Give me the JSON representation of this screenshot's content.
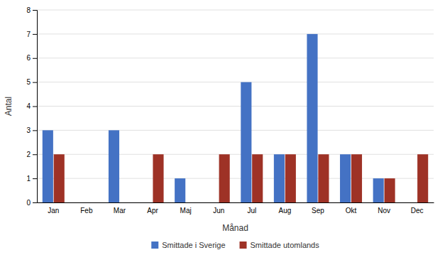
{
  "chart_data": {
    "type": "bar",
    "categories": [
      "Jan",
      "Feb",
      "Mar",
      "Apr",
      "Maj",
      "Jun",
      "Jul",
      "Aug",
      "Sep",
      "Okt",
      "Nov",
      "Dec"
    ],
    "series": [
      {
        "name": "Smittade i Sverige",
        "color": "#4472C4",
        "values": [
          3,
          0,
          3,
          0,
          1,
          0,
          5,
          2,
          7,
          2,
          1,
          0
        ]
      },
      {
        "name": "Smittade utomlands",
        "color": "#9E3226",
        "values": [
          2,
          0,
          0,
          2,
          0,
          2,
          2,
          2,
          2,
          2,
          1,
          2
        ]
      }
    ],
    "xlabel": "Månad",
    "ylabel": "Antal",
    "ylim": [
      0,
      8
    ],
    "yticks": [
      0,
      1,
      2,
      3,
      4,
      5,
      6,
      7,
      8
    ],
    "grid": true,
    "legend": "bottom"
  }
}
